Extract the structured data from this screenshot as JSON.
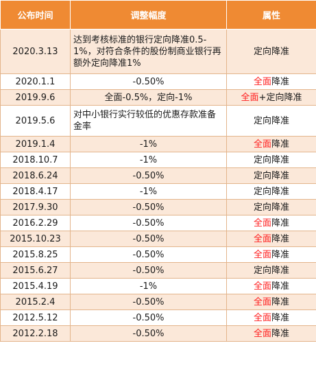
{
  "header": {
    "date": "公布时间",
    "adjust": "调整幅度",
    "type": "属性"
  },
  "rows": [
    {
      "date": "2020.3.13",
      "adjust": "达到考核标准的银行定向降准0.5-1%，对符合条件的股份制商业银行再额外定向降准1%",
      "type_a": "",
      "type_b": "定向降准",
      "shade": true,
      "multiline": 3
    },
    {
      "date": "2020.1.1",
      "adjust": "-0.50%",
      "type_a": "全面",
      "type_b": "降准",
      "shade": false
    },
    {
      "date": "2019.9.6",
      "adjust": "全面-0.5%，定向-1%",
      "type_a": "全面",
      "type_b": "+定向降准",
      "shade": true
    },
    {
      "date": "2019.5.6",
      "adjust": "对中小银行实行较低的优惠存款准备金率",
      "type_a": "",
      "type_b": "定向降准",
      "shade": false,
      "multiline": 2
    },
    {
      "date": "2019.1.4",
      "adjust": "-1%",
      "type_a": "全面",
      "type_b": "降准",
      "shade": true
    },
    {
      "date": "2018.10.7",
      "adjust": "-1%",
      "type_a": "",
      "type_b": "定向降准",
      "shade": false
    },
    {
      "date": "2018.6.24",
      "adjust": "-0.50%",
      "type_a": "",
      "type_b": "定向降准",
      "shade": true
    },
    {
      "date": "2018.4.17",
      "adjust": "-1%",
      "type_a": "",
      "type_b": "定向降准",
      "shade": false
    },
    {
      "date": "2017.9.30",
      "adjust": "-0.50%",
      "type_a": "",
      "type_b": "定向降准",
      "shade": true
    },
    {
      "date": "2016.2.29",
      "adjust": "-0.50%",
      "type_a": "全面",
      "type_b": "降准",
      "shade": false
    },
    {
      "date": "2015.10.23",
      "adjust": "-0.50%",
      "type_a": "全面",
      "type_b": "降准",
      "shade": true
    },
    {
      "date": "2015.8.25",
      "adjust": "-0.50%",
      "type_a": "全面",
      "type_b": "降准",
      "shade": false
    },
    {
      "date": "2015.6.27",
      "adjust": "-0.50%",
      "type_a": "",
      "type_b": "定向降准",
      "shade": true
    },
    {
      "date": "2015.4.19",
      "adjust": "-1%",
      "type_a": "全面",
      "type_b": "降准",
      "shade": false
    },
    {
      "date": "2015.2.4",
      "adjust": "-0.50%",
      "type_a": "全面",
      "type_b": "降准",
      "shade": true
    },
    {
      "date": "2012.5.12",
      "adjust": "-0.50%",
      "type_a": "全面",
      "type_b": "降准",
      "shade": false
    },
    {
      "date": "2012.2.18",
      "adjust": "-0.50%",
      "type_a": "全面",
      "type_b": "降准",
      "shade": true
    }
  ]
}
